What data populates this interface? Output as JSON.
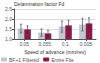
{
  "chart_data": {
    "type": "bar",
    "categories": [
      "0.05",
      "0.055",
      "0.1",
      "0.005"
    ],
    "series": [
      {
        "name": "BF+1 Filtered",
        "color": "#c0c8d0",
        "values": [
          1.52,
          1.32,
          1.62,
          1.72
        ],
        "errors": [
          0.22,
          0.18,
          0.28,
          0.32
        ]
      },
      {
        "name": "Entire File",
        "color": "#8b1a4a",
        "values": [
          1.48,
          1.28,
          1.68,
          1.78
        ],
        "errors": [
          0.18,
          0.15,
          0.25,
          0.28
        ]
      }
    ],
    "xlabel": "Speed of advance (mm/rev)",
    "ylabel": "Delamination factor Fd",
    "ylim": [
      1.0,
      2.5
    ],
    "yticks": [
      {
        "value": 1.0,
        "label": "1.0"
      },
      1.5,
      {
        "value": 2.0,
        "label": "2.0"
      },
      2.5
    ],
    "grid": true,
    "legend": "lower left"
  }
}
